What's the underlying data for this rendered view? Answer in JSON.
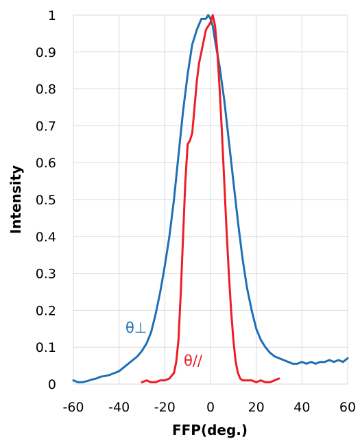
{
  "chart_data": {
    "type": "line",
    "title": "",
    "xlabel": "FFP(deg.)",
    "ylabel": "Intensity",
    "xlim": [
      -60,
      60
    ],
    "ylim": [
      0,
      1
    ],
    "grid": true,
    "legend": "none",
    "x_ticks": [
      "-60",
      "-40",
      "-20",
      "0",
      "20",
      "40",
      "60"
    ],
    "y_ticks": [
      "0",
      "0.1",
      "0.2",
      "0.3",
      "0.4",
      "0.5",
      "0.6",
      "0.7",
      "0.8",
      "0.9",
      "1"
    ],
    "series": [
      {
        "name": "θ⊥",
        "color": "#1f6fb4",
        "x": [
          -60,
          -58,
          -56,
          -54,
          -52,
          -50,
          -48,
          -46,
          -44,
          -42,
          -40,
          -38,
          -36,
          -34,
          -32,
          -30,
          -28,
          -26,
          -24,
          -22,
          -20,
          -18,
          -16,
          -14,
          -12,
          -10,
          -8,
          -6,
          -4,
          -2,
          -1,
          0,
          1,
          2,
          4,
          6,
          8,
          10,
          12,
          14,
          16,
          18,
          20,
          22,
          24,
          26,
          28,
          30,
          32,
          34,
          36,
          38,
          40,
          42,
          44,
          46,
          48,
          50,
          52,
          54,
          56,
          58,
          60
        ],
        "y": [
          0.01,
          0.005,
          0.005,
          0.008,
          0.012,
          0.015,
          0.02,
          0.022,
          0.025,
          0.03,
          0.035,
          0.045,
          0.055,
          0.065,
          0.075,
          0.09,
          0.11,
          0.14,
          0.19,
          0.25,
          0.32,
          0.4,
          0.5,
          0.62,
          0.74,
          0.84,
          0.92,
          0.96,
          0.99,
          0.99,
          1.0,
          0.99,
          0.97,
          0.93,
          0.86,
          0.77,
          0.66,
          0.55,
          0.44,
          0.34,
          0.26,
          0.2,
          0.15,
          0.12,
          0.1,
          0.085,
          0.075,
          0.07,
          0.065,
          0.06,
          0.055,
          0.055,
          0.06,
          0.055,
          0.06,
          0.055,
          0.06,
          0.06,
          0.065,
          0.06,
          0.065,
          0.06,
          0.07
        ]
      },
      {
        "name": "θ//",
        "color": "#ee1c25",
        "x": [
          -30,
          -28,
          -26,
          -24,
          -22,
          -20,
          -18,
          -16,
          -15,
          -14,
          -13,
          -12,
          -11,
          -10,
          -9,
          -8,
          -7,
          -6,
          -5,
          -4,
          -3,
          -2,
          -1,
          0,
          1,
          2,
          3,
          4,
          5,
          6,
          7,
          8,
          9,
          10,
          11,
          12,
          13,
          14,
          16,
          18,
          20,
          22,
          24,
          26,
          28,
          30
        ],
        "y": [
          0.005,
          0.01,
          0.005,
          0.005,
          0.01,
          0.01,
          0.015,
          0.03,
          0.06,
          0.12,
          0.25,
          0.4,
          0.55,
          0.65,
          0.66,
          0.68,
          0.75,
          0.82,
          0.87,
          0.9,
          0.93,
          0.96,
          0.97,
          0.98,
          1.0,
          0.97,
          0.9,
          0.8,
          0.68,
          0.55,
          0.42,
          0.3,
          0.2,
          0.12,
          0.06,
          0.03,
          0.015,
          0.01,
          0.01,
          0.01,
          0.005,
          0.01,
          0.005,
          0.005,
          0.01,
          0.015
        ]
      }
    ],
    "annotations": [
      {
        "text": "θ⊥",
        "series": 0
      },
      {
        "text": "θ//",
        "series": 1
      }
    ]
  }
}
